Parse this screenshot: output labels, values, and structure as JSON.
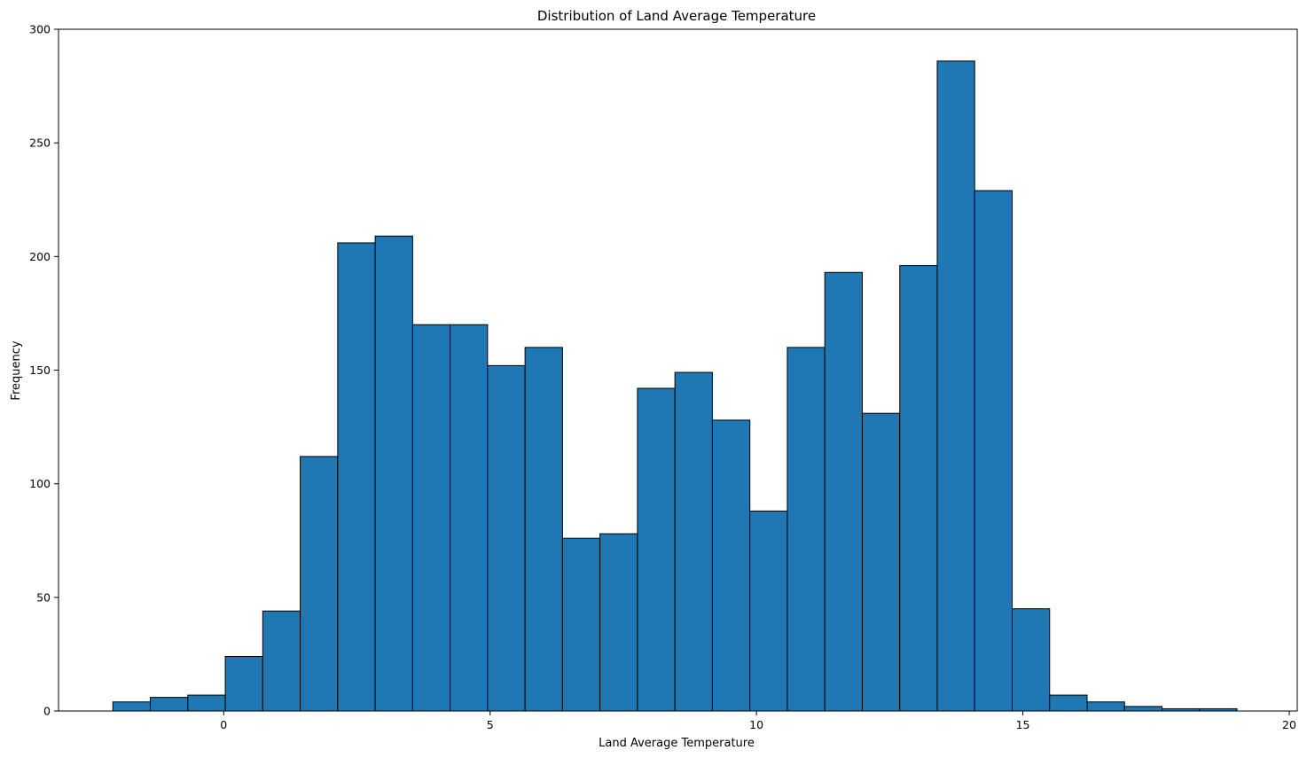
{
  "chart_data": {
    "type": "histogram",
    "title": "Distribution of Land Average Temperature",
    "xlabel": "Land Average Temperature",
    "ylabel": "Frequency",
    "xlim": [
      -3.1,
      20.15
    ],
    "ylim": [
      0,
      300
    ],
    "xticks": [
      0,
      5,
      10,
      15,
      20
    ],
    "yticks": [
      0,
      50,
      100,
      150,
      200,
      250,
      300
    ],
    "bin_start": -2.08,
    "bin_width": 0.7033,
    "values": [
      4,
      6,
      7,
      24,
      44,
      112,
      206,
      209,
      170,
      170,
      152,
      160,
      76,
      78,
      142,
      149,
      128,
      88,
      160,
      193,
      131,
      196,
      286,
      229,
      45,
      7,
      4,
      2,
      1,
      1
    ],
    "bar_color": "#1f77b4",
    "edge_color": "#000000",
    "grid": false,
    "legend": "none"
  }
}
